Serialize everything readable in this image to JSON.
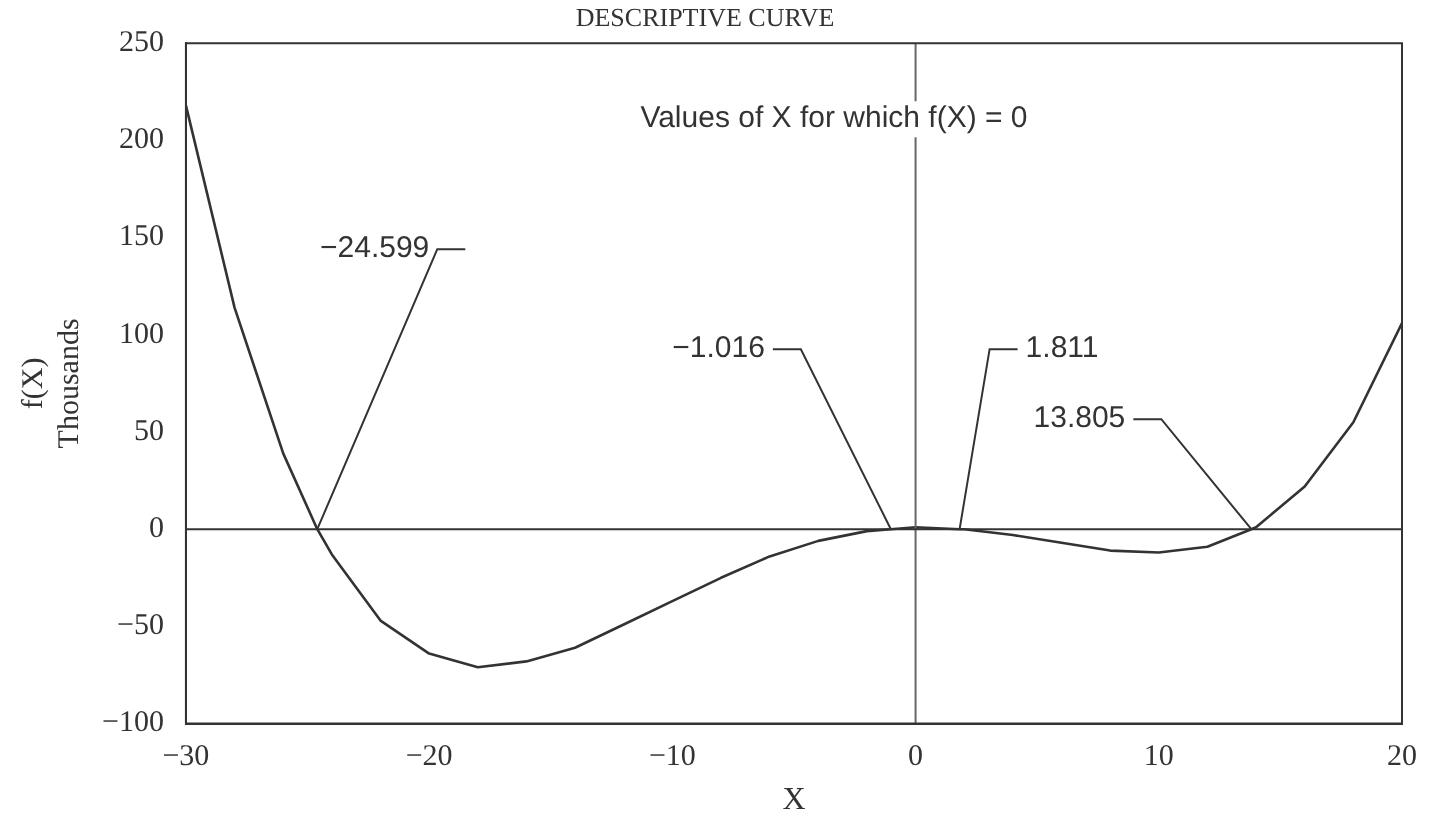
{
  "chart_data": {
    "type": "line",
    "title": "DESCRIPTIVE CURVE",
    "xlabel": "X",
    "ylabel": "f(X)\nThousands",
    "x": [
      -30,
      -28,
      -26,
      -24.599,
      -24,
      -22,
      -20,
      -18,
      -16,
      -14,
      -12,
      -10,
      -8,
      -6,
      -4,
      -2,
      -1.016,
      0,
      1.811,
      2,
      4,
      6,
      8,
      10,
      12,
      13.805,
      14,
      16,
      18,
      20
    ],
    "series": [
      {
        "color": "#333333",
        "values": [
          218,
          114,
          39,
          0,
          -13,
          -47,
          -64,
          -71,
          -68,
          -61,
          -49,
          -37,
          -25,
          -14,
          -6,
          -1,
          0,
          1,
          0,
          0,
          -3,
          -7,
          -11,
          -12,
          -9,
          0,
          1,
          22,
          55,
          106
        ]
      }
    ],
    "xlim": [
      -30,
      20
    ],
    "xticks": [
      -30,
      -20,
      -10,
      0,
      10,
      20
    ],
    "ylim": [
      -100,
      250
    ],
    "yticks": [
      -100,
      -50,
      0,
      50,
      100,
      150,
      200,
      250
    ],
    "grid": false,
    "legend": false,
    "marker": "none",
    "line_style": "solid",
    "ref_lines": [
      {
        "axis": "x",
        "value": 0,
        "color": "#666666"
      },
      {
        "axis": "y",
        "value": 0,
        "color": "#333333"
      }
    ],
    "annotations": [
      "Values of X for which f(X) = 0",
      {
        "text": "−24.599",
        "x": -24.599,
        "y": 0
      },
      {
        "text": "−1.016",
        "x": -1.016,
        "y": 0
      },
      {
        "text": "1.811",
        "x": 1.811,
        "y": 0
      },
      {
        "text": "13.805",
        "x": 13.805,
        "y": 0
      }
    ]
  }
}
